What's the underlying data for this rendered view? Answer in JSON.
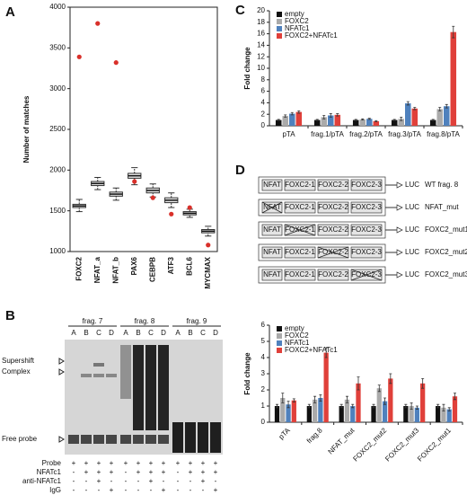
{
  "panels": [
    "A",
    "B",
    "C",
    "D"
  ],
  "chart_data": [
    {
      "type": "box",
      "y_label": "Number of matches",
      "categories": [
        "FOXC2",
        "NFAT_a",
        "NFAT_b",
        "PAX6",
        "CEBPB",
        "ATF3",
        "BCL6",
        "MYCMAX"
      ],
      "whisker_low": [
        1490,
        1760,
        1630,
        1820,
        1670,
        1540,
        1420,
        1190
      ],
      "q1": [
        1540,
        1810,
        1680,
        1900,
        1720,
        1600,
        1450,
        1230
      ],
      "median": [
        1560,
        1835,
        1705,
        1930,
        1750,
        1630,
        1470,
        1250
      ],
      "q3": [
        1580,
        1860,
        1730,
        1960,
        1780,
        1660,
        1490,
        1270
      ],
      "whisker_high": [
        1640,
        1910,
        1780,
        2030,
        1830,
        1720,
        1520,
        1310
      ],
      "observed": [
        3390,
        3800,
        3320,
        1860,
        1660,
        1460,
        1540,
        1080
      ],
      "box_color": "#e6e6e6",
      "observed_color": "#d9302a",
      "ylim": [
        1000,
        4000
      ],
      "yticks": [
        1000,
        1500,
        2000,
        2500,
        3000,
        3500,
        4000
      ]
    },
    {
      "type": "bar",
      "y_label": "Fold change",
      "categories": [
        "pTA",
        "frag.1/pTA",
        "frag.2/pTA",
        "frag.3/pTA",
        "frag.8/pTA"
      ],
      "series": [
        {
          "name": "empty",
          "color": "#111111",
          "values": [
            1,
            1,
            1,
            1,
            1
          ],
          "errors": [
            0.1,
            0.1,
            0.1,
            0.1,
            0.1
          ]
        },
        {
          "name": "FOXC2",
          "color": "#aaaaaa",
          "values": [
            1.7,
            1.5,
            1.1,
            1.2,
            2.9
          ],
          "errors": [
            0.2,
            0.3,
            0.1,
            0.3,
            0.3
          ]
        },
        {
          "name": "NFATc1",
          "color": "#4f81bd",
          "values": [
            2.1,
            1.8,
            1.2,
            3.9,
            3.4
          ],
          "errors": [
            0.2,
            0.3,
            0.1,
            0.3,
            0.3
          ]
        },
        {
          "name": "FOXC2+NFATc1",
          "color": "#e0403a",
          "values": [
            2.4,
            1.9,
            0.8,
            3.0,
            16.3
          ],
          "errors": [
            0.2,
            0.2,
            0.1,
            0.2,
            1.0
          ]
        }
      ],
      "ylim": [
        0,
        20
      ],
      "yticks": [
        0,
        2,
        4,
        6,
        8,
        10,
        12,
        14,
        16,
        18,
        20
      ]
    },
    {
      "type": "bar",
      "y_label": "Fold change",
      "categories": [
        "pTA",
        "frag.8",
        "NFAT_mut",
        "FOXC2_mut2",
        "FOXC2_mut3",
        "FOXC2_mut1"
      ],
      "series": [
        {
          "name": "empty",
          "color": "#111111",
          "values": [
            1,
            1,
            1,
            1,
            1,
            1
          ],
          "errors": [
            0.1,
            0.1,
            0.1,
            0.1,
            0.1,
            0.1
          ]
        },
        {
          "name": "FOXC2",
          "color": "#aaaaaa",
          "values": [
            1.5,
            1.4,
            1.4,
            2.1,
            1.0,
            0.9
          ],
          "errors": [
            0.3,
            0.2,
            0.2,
            0.2,
            0.2,
            0.2
          ]
        },
        {
          "name": "NFATc1",
          "color": "#4f81bd",
          "values": [
            1.1,
            1.5,
            1.0,
            1.3,
            0.9,
            0.8
          ],
          "errors": [
            0.2,
            0.2,
            0.1,
            0.2,
            0.1,
            0.1
          ]
        },
        {
          "name": "FOXC2+NFATc1",
          "color": "#e0403a",
          "values": [
            1.35,
            4.3,
            2.4,
            2.7,
            2.4,
            1.6
          ],
          "errors": [
            0.1,
            0.3,
            0.4,
            0.3,
            0.3,
            0.2
          ]
        }
      ],
      "ylim": [
        0,
        6
      ],
      "yticks": [
        0,
        1,
        2,
        3,
        4,
        5,
        6
      ]
    }
  ],
  "gel": {
    "fragments": [
      "frag. 7",
      "frag. 8",
      "frag. 9"
    ],
    "lanes": [
      "A",
      "B",
      "C",
      "D"
    ],
    "markers": [
      "Supershift",
      "Complex",
      "Free probe"
    ],
    "rows": [
      {
        "label": "Probe",
        "signs": [
          "+",
          "+",
          "+",
          "+"
        ]
      },
      {
        "label": "NFATc1",
        "signs": [
          "-",
          "+",
          "+",
          "+"
        ]
      },
      {
        "label": "anti-NFATc1",
        "signs": [
          "-",
          "-",
          "+",
          "-"
        ]
      },
      {
        "label": "IgG",
        "signs": [
          "-",
          "-",
          "-",
          "+"
        ]
      }
    ]
  },
  "diagram": {
    "elements": [
      "NFAT",
      "FOXC2-1",
      "FOXC2-2",
      "FOXC2-3"
    ],
    "reporter": "LUC",
    "constructs": [
      {
        "name": "WT frag. 8"
      },
      {
        "name": "NFAT_mut",
        "mutated": 0
      },
      {
        "name": "FOXC2_mut1",
        "mutated": 1
      },
      {
        "name": "FOXC2_mut2",
        "mutated": 2
      },
      {
        "name": "FOXC2_mut3",
        "mutated": 3
      }
    ]
  }
}
